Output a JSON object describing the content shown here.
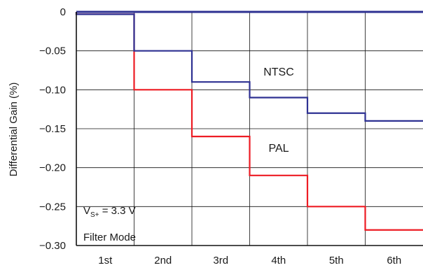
{
  "chart_data": {
    "type": "line",
    "step": "post",
    "categories": [
      "1st",
      "2nd",
      "3rd",
      "4th",
      "5th",
      "6th"
    ],
    "ylabel": "Differential Gain (%)",
    "ylim": [
      -0.3,
      0
    ],
    "yticks": [
      "0",
      "−0.05",
      "−0.10",
      "−0.15",
      "−0.20",
      "−0.25",
      "−0.30"
    ],
    "ytick_values": [
      0,
      -0.05,
      -0.1,
      -0.15,
      -0.2,
      -0.25,
      -0.3
    ],
    "grid": true,
    "series": [
      {
        "name": "NTSC",
        "color": "#2e3192",
        "values": [
          -0.003,
          -0.05,
          -0.09,
          -0.11,
          -0.13,
          -0.14
        ]
      },
      {
        "name": "PAL",
        "color": "#ed1c24",
        "values": [
          -0.003,
          -0.1,
          -0.16,
          -0.21,
          -0.25,
          -0.28
        ]
      }
    ],
    "annotation": {
      "line1_main": "V",
      "line1_sub": "S+",
      "line1_rest": " = 3.3 V",
      "line2": "Filter Mode"
    }
  }
}
